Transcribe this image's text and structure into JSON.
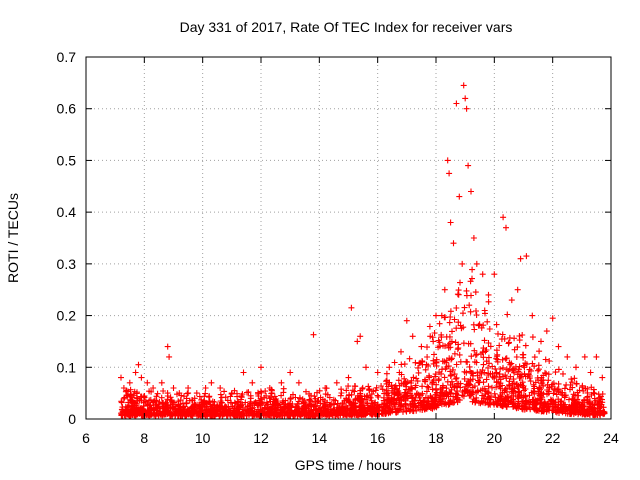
{
  "chart_data": {
    "type": "scatter",
    "title": "Day 331 of 2017, Rate Of TEC Index for receiver vars",
    "xlabel": "GPS time / hours",
    "ylabel": "ROTI / TECUs",
    "xlim": [
      6,
      24
    ],
    "ylim": [
      0,
      0.7
    ],
    "x_ticks": [
      6,
      8,
      10,
      12,
      14,
      16,
      18,
      20,
      22,
      24
    ],
    "y_ticks": [
      0,
      0.1,
      0.2,
      0.3,
      0.4,
      0.5,
      0.6,
      0.7
    ],
    "x_tick_labels": [
      "6",
      "8",
      "10",
      "12",
      "14",
      "16",
      "18",
      "20",
      "22",
      "24"
    ],
    "y_tick_labels": [
      "0",
      "0.1",
      "0.2",
      "0.3",
      "0.4",
      "0.5",
      "0.6",
      "0.7"
    ],
    "grid": true,
    "marker": "+",
    "color": "#ff0000",
    "series": [
      {
        "points": [
          [
            7.2,
            0.08
          ],
          [
            7.3,
            0.06
          ],
          [
            7.5,
            0.07
          ],
          [
            7.7,
            0.09
          ],
          [
            7.8,
            0.105
          ],
          [
            7.9,
            0.08
          ],
          [
            8.1,
            0.07
          ],
          [
            8.3,
            0.06
          ],
          [
            8.6,
            0.07
          ],
          [
            8.8,
            0.14
          ],
          [
            8.85,
            0.12
          ],
          [
            9.0,
            0.06
          ],
          [
            9.2,
            0.05
          ],
          [
            9.5,
            0.06
          ],
          [
            9.8,
            0.05
          ],
          [
            10.1,
            0.06
          ],
          [
            10.3,
            0.07
          ],
          [
            10.6,
            0.06
          ],
          [
            11.0,
            0.05
          ],
          [
            11.4,
            0.09
          ],
          [
            11.7,
            0.07
          ],
          [
            12.0,
            0.1
          ],
          [
            12.3,
            0.06
          ],
          [
            12.7,
            0.07
          ],
          [
            13.0,
            0.09
          ],
          [
            13.3,
            0.07
          ],
          [
            13.8,
            0.163
          ],
          [
            14.2,
            0.06
          ],
          [
            14.6,
            0.07
          ],
          [
            15.0,
            0.08
          ],
          [
            15.1,
            0.215
          ],
          [
            15.3,
            0.15
          ],
          [
            15.4,
            0.16
          ],
          [
            15.6,
            0.1
          ],
          [
            16.0,
            0.09
          ],
          [
            16.4,
            0.1
          ],
          [
            16.8,
            0.13
          ],
          [
            17.0,
            0.19
          ],
          [
            17.2,
            0.16
          ],
          [
            17.5,
            0.14
          ],
          [
            17.8,
            0.16
          ],
          [
            18.0,
            0.2
          ],
          [
            18.2,
            0.2
          ],
          [
            18.3,
            0.25
          ],
          [
            18.4,
            0.5
          ],
          [
            18.45,
            0.475
          ],
          [
            18.5,
            0.38
          ],
          [
            18.6,
            0.34
          ],
          [
            18.7,
            0.61
          ],
          [
            18.8,
            0.43
          ],
          [
            18.9,
            0.3
          ],
          [
            18.95,
            0.645
          ],
          [
            19.0,
            0.62
          ],
          [
            19.05,
            0.6
          ],
          [
            19.1,
            0.49
          ],
          [
            19.2,
            0.44
          ],
          [
            19.3,
            0.35
          ],
          [
            19.4,
            0.3
          ],
          [
            19.6,
            0.28
          ],
          [
            19.8,
            0.24
          ],
          [
            20.0,
            0.28
          ],
          [
            20.3,
            0.39
          ],
          [
            20.4,
            0.37
          ],
          [
            20.6,
            0.23
          ],
          [
            20.8,
            0.25
          ],
          [
            20.9,
            0.31
          ],
          [
            21.1,
            0.315
          ],
          [
            21.3,
            0.2
          ],
          [
            21.6,
            0.15
          ],
          [
            21.8,
            0.17
          ],
          [
            22.0,
            0.195
          ],
          [
            22.2,
            0.14
          ],
          [
            22.5,
            0.12
          ],
          [
            22.8,
            0.1
          ],
          [
            23.1,
            0.12
          ],
          [
            23.3,
            0.09
          ],
          [
            23.5,
            0.12
          ],
          [
            23.7,
            0.08
          ]
        ],
        "envelope": [
          [
            7.2,
            0.045
          ],
          [
            8.0,
            0.04
          ],
          [
            9.0,
            0.04
          ],
          [
            10.0,
            0.035
          ],
          [
            11.0,
            0.04
          ],
          [
            12.0,
            0.04
          ],
          [
            13.0,
            0.04
          ],
          [
            14.0,
            0.04
          ],
          [
            15.0,
            0.045
          ],
          [
            16.0,
            0.055
          ],
          [
            16.5,
            0.075
          ],
          [
            17.0,
            0.095
          ],
          [
            17.5,
            0.11
          ],
          [
            18.0,
            0.14
          ],
          [
            18.5,
            0.19
          ],
          [
            19.0,
            0.23
          ],
          [
            19.5,
            0.2
          ],
          [
            20.0,
            0.17
          ],
          [
            20.5,
            0.15
          ],
          [
            21.0,
            0.12
          ],
          [
            21.5,
            0.1
          ],
          [
            22.0,
            0.085
          ],
          [
            22.5,
            0.065
          ],
          [
            23.0,
            0.055
          ],
          [
            23.8,
            0.045
          ]
        ]
      }
    ]
  }
}
